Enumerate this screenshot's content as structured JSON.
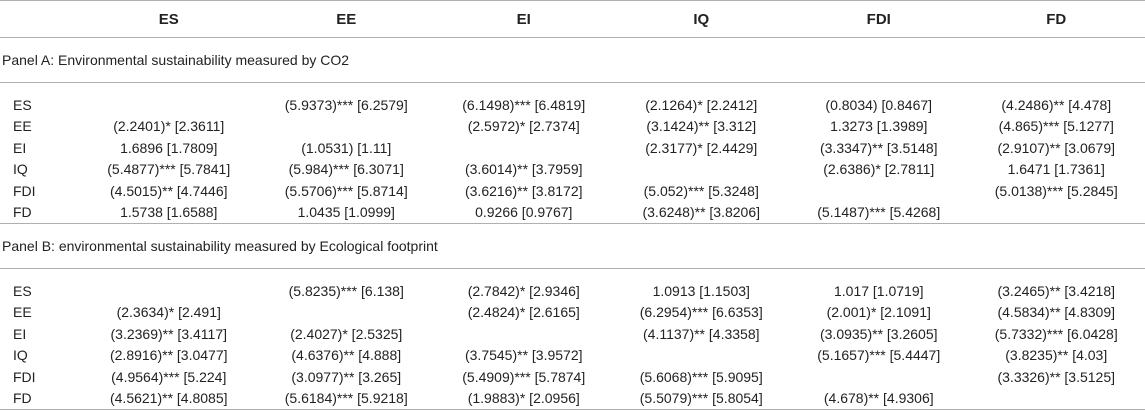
{
  "header": [
    "",
    "ES",
    "EE",
    "EI",
    "IQ",
    "FDI",
    "FD"
  ],
  "panels": [
    {
      "title": "Panel A: Environmental sustainability measured by CO2",
      "rows": [
        [
          "ES",
          "",
          "(5.9373)*** [6.2579]",
          "(6.1498)*** [6.4819]",
          "(2.1264)* [2.2412]",
          "(0.8034) [0.8467]",
          "(4.2486)** [4.478]"
        ],
        [
          "EE",
          "(2.2401)* [2.3611]",
          "",
          "(2.5972)* [2.7374]",
          "(3.1424)** [3.312]",
          "1.3273 [1.3989]",
          "(4.865)*** [5.1277]"
        ],
        [
          "EI",
          "1.6896 [1.7809]",
          "(1.0531) [1.11]",
          "",
          "(2.3177)* [2.4429]",
          "(3.3347)** [3.5148]",
          "(2.9107)** [3.0679]"
        ],
        [
          "IQ",
          "(5.4877)*** [5.7841]",
          "(5.984)*** [6.3071]",
          "(3.6014)** [3.7959]",
          "",
          "(2.6386)* [2.7811]",
          "1.6471 [1.7361]"
        ],
        [
          "FDI",
          "(4.5015)** [4.7446]",
          "(5.5706)*** [5.8714]",
          "(3.6216)** [3.8172]",
          "(5.052)*** [5.3248]",
          "",
          "(5.0138)*** [5.2845]"
        ],
        [
          "FD",
          "1.5738 [1.6588]",
          "1.0435 [1.0999]",
          "0.9266 [0.9767]",
          "(3.6248)** [3.8206]",
          "(5.1487)*** [5.4268]",
          ""
        ]
      ]
    },
    {
      "title": "Panel B: environmental sustainability measured by Ecological footprint",
      "rows": [
        [
          "ES",
          "",
          "(5.8235)*** [6.138]",
          "(2.7842)* [2.9346]",
          "1.0913 [1.1503]",
          "1.017 [1.0719]",
          "(3.2465)** [3.4218]"
        ],
        [
          "EE",
          "(2.3634)* [2.491]",
          "",
          "(2.4824)* [2.6165]",
          "(6.2954)*** [6.6353]",
          "(2.001)* [2.1091]",
          "(4.5834)** [4.8309]"
        ],
        [
          "EI",
          "(3.2369)** [3.4117]",
          "(2.4027)* [2.5325]",
          "",
          "(4.1137)** [4.3358]",
          "(3.0935)** [3.2605]",
          "(5.7332)*** [6.0428]"
        ],
        [
          "IQ",
          "(2.8916)** [3.0477]",
          "(4.6376)** [4.888]",
          "(3.7545)** [3.9572]",
          "",
          "(5.1657)*** [5.4447]",
          "(3.8235)** [4.03]"
        ],
        [
          "FDI",
          "(4.9564)*** [5.224]",
          "(3.0977)** [3.265]",
          "(5.4909)*** [5.7874]",
          "(5.6068)*** [5.9095]",
          "",
          "(3.3326)** [3.5125]"
        ],
        [
          "FD",
          "(4.5621)** [4.8085]",
          "(5.6184)*** [5.9218]",
          "(1.9883)* [2.0956]",
          "(5.5079)*** [5.8054]",
          "(4.678)** [4.9306]",
          ""
        ]
      ]
    }
  ]
}
